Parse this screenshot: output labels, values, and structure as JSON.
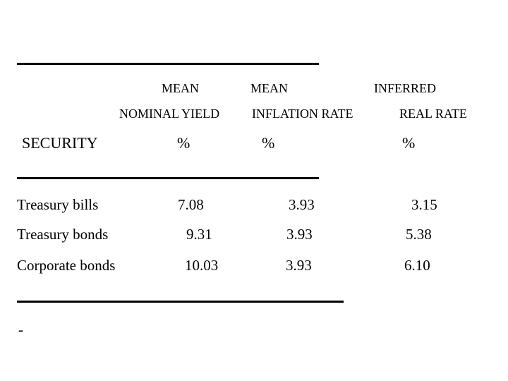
{
  "table": {
    "headers": {
      "col1_line1": "MEAN",
      "col1_line2": "NOMINAL YIELD",
      "col2_line1": "MEAN",
      "col2_line2": "INFLATION RATE",
      "col3_line1": "INFERRED",
      "col3_line2": "REAL RATE",
      "security": "SECURITY",
      "pct1": "%",
      "pct2": "%",
      "pct3": "%"
    },
    "rows": [
      {
        "security": "Treasury bills",
        "nominal_yield": "7.08",
        "inflation_rate": "3.93",
        "real_rate": "3.15"
      },
      {
        "security": "Treasury bonds",
        "nominal_yield": "9.31",
        "inflation_rate": "3.93",
        "real_rate": "5.38"
      },
      {
        "security": "Corporate bonds",
        "nominal_yield": "10.03",
        "inflation_rate": "3.93",
        "real_rate": "6.10"
      }
    ],
    "trailing_mark": "-"
  }
}
